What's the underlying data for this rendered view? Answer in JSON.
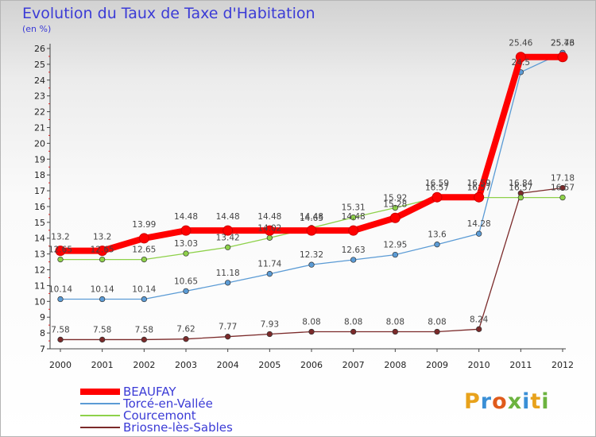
{
  "title": "Evolution du Taux de Taxe d'Habitation",
  "subtitle": "(en %)",
  "logo": {
    "text": "Proxiti",
    "colors": [
      "#e8a21b",
      "#3a8fd6",
      "#e05b1b",
      "#6cb33f",
      "#3a8fd6",
      "#e8a21b",
      "#6cb33f"
    ]
  },
  "chart_data": {
    "type": "line",
    "x": [
      2000,
      2001,
      2002,
      2003,
      2004,
      2005,
      2006,
      2007,
      2008,
      2009,
      2010,
      2011,
      2012
    ],
    "ylim": [
      7,
      26
    ],
    "yticks": [
      7,
      8,
      9,
      10,
      11,
      12,
      13,
      14,
      15,
      16,
      17,
      18,
      19,
      20,
      21,
      22,
      23,
      24,
      25,
      26
    ],
    "grid": false,
    "legend_position": "bottom-left",
    "series": [
      {
        "name": "BEAUFAY",
        "color": "#ff0000",
        "values": [
          13.2,
          13.2,
          13.99,
          14.48,
          14.48,
          14.48,
          14.48,
          14.48,
          15.28,
          16.59,
          16.59,
          25.46,
          25.46
        ],
        "labels": [
          "13.2",
          "13.2",
          "13.99",
          "14.48",
          "14.48",
          "14.48",
          "14.48",
          "14.48",
          "15.28",
          "16.59",
          "16.59",
          "25.46",
          "25.46"
        ]
      },
      {
        "name": "Torcé-en-Vallée",
        "color": "#5b9bd5",
        "values": [
          10.14,
          10.14,
          10.14,
          10.65,
          11.18,
          11.74,
          12.32,
          12.63,
          12.95,
          13.6,
          14.28,
          24.5,
          25.73
        ],
        "labels": [
          "10.14",
          "10.14",
          "10.14",
          "10.65",
          "11.18",
          "11.74",
          "12.32",
          "12.63",
          "12.95",
          "13.6",
          "14.28",
          "24.5",
          "25.73"
        ]
      },
      {
        "name": "Courcemont",
        "color": "#8ed14a",
        "values": [
          12.65,
          12.65,
          12.65,
          13.03,
          13.42,
          14.02,
          14.65,
          15.31,
          15.92,
          16.57,
          16.57,
          16.57,
          16.57
        ],
        "labels": [
          "12.65",
          "12.65",
          "12.65",
          "13.03",
          "13.42",
          "14.02",
          "14.65",
          "15.31",
          "15.92",
          "16.57",
          "16.57",
          "16.57",
          "16.57"
        ]
      },
      {
        "name": "Briosne-lès-Sables",
        "color": "#7b2a2a",
        "values": [
          7.58,
          7.58,
          7.58,
          7.62,
          7.77,
          7.93,
          8.08,
          8.08,
          8.08,
          8.08,
          8.24,
          16.84,
          17.18
        ],
        "labels": [
          "7.58",
          "7.58",
          "7.58",
          "7.62",
          "7.77",
          "7.93",
          "8.08",
          "8.08",
          "8.08",
          "8.08",
          "8.24",
          "16.84",
          "17.18"
        ]
      }
    ]
  }
}
